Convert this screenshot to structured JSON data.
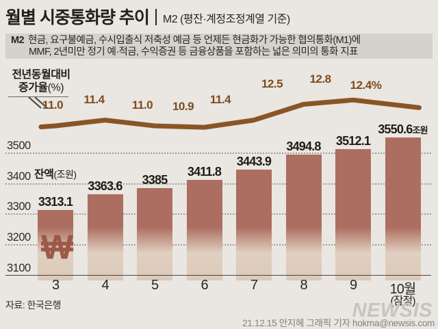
{
  "header": {
    "title": "월별 시중통화량 추이",
    "subtitle": "M2 (평잔·계정조정계열 기준)"
  },
  "description": {
    "prefix": "M2",
    "line1": "현금, 요구불예금, 수시입출식 저축성 예금 등 언제든 현금화가 가능한 협의통화(M1)에",
    "line2": "MMF, 2년미만 정기 예·적금, 수익증권 등 금융상품을 포함하는 넓은 의미의 통화 지표"
  },
  "rate_axis_label": {
    "line1": "전년동월대비",
    "line2_bold": "증가율",
    "line2_unit": "(%)"
  },
  "balance_axis_label": {
    "bold": "잔액",
    "unit": "(조원)"
  },
  "won_symbol": "₩",
  "y_ticks": [
    "3500",
    "3400",
    "3300",
    "3200",
    "3100"
  ],
  "x_labels": [
    "3",
    "4",
    "5",
    "6",
    "7",
    "8",
    "9",
    "10월"
  ],
  "x_sublabel": "(잠정)",
  "bar_labels": [
    {
      "label": "3313.1",
      "suffix": ""
    },
    {
      "label": "3363.6",
      "suffix": ""
    },
    {
      "label": "3385",
      "suffix": ""
    },
    {
      "label": "3411.8",
      "suffix": ""
    },
    {
      "label": "3443.9",
      "suffix": ""
    },
    {
      "label": "3494.8",
      "suffix": ""
    },
    {
      "label": "3512.1",
      "suffix": ""
    },
    {
      "label": "3550.6",
      "suffix": "조원"
    }
  ],
  "line_labels": [
    "11.0",
    "11.4",
    "11.0",
    "10.9",
    "11.4",
    "12.5",
    "12.8",
    "12.4%"
  ],
  "footer": {
    "source": "자료:  한국은행",
    "watermark": "NEWSIS",
    "credit": "21.12.15 안지혜 그래픽 기자 hokma@newsis.com"
  },
  "colors": {
    "background": "#eae6e1",
    "desc_box": "#d5d1cc",
    "bar_top": "#ac6e60",
    "bar_bottom": "#dbc9b9",
    "trend_line": "#8a5526",
    "line_label": "#7c4c1d",
    "won": "#9d5948",
    "text": "#221d18"
  },
  "chart_data": {
    "type": "combo",
    "categories": [
      "3",
      "4",
      "5",
      "6",
      "7",
      "8",
      "9",
      "10월(잠정)"
    ],
    "series": [
      {
        "name": "잔액(조원)",
        "type": "bar",
        "values": [
          3313.1,
          3363.6,
          3385,
          3411.8,
          3443.9,
          3494.8,
          3512.1,
          3550.6
        ]
      },
      {
        "name": "전년동월대비 증가율(%)",
        "type": "line",
        "values": [
          11.0,
          11.4,
          11.0,
          10.9,
          11.4,
          12.5,
          12.8,
          12.4
        ]
      }
    ],
    "title": "월별 시중통화량 추이 M2 (평잔·계정조정계열 기준)",
    "xlabel": "월",
    "ylabel_bar": "잔액(조원)",
    "ylabel_line": "전년동월대비 증가율(%)",
    "ylim_bar": [
      3100,
      3560
    ],
    "ylim_line": [
      10.5,
      13.2
    ],
    "grid": true,
    "legend_position": "none"
  }
}
